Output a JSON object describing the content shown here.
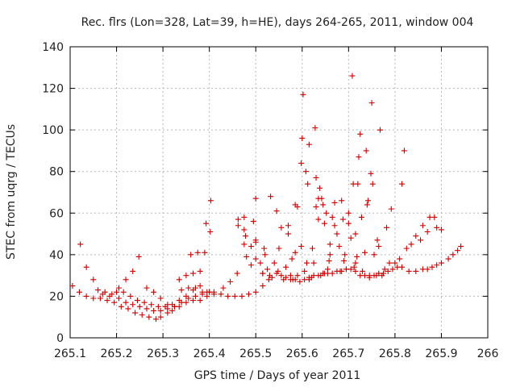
{
  "chart_data": {
    "type": "scatter",
    "title": "Rec. flrs (Lon=328, Lat=39, h=HE), days 264-265, 2011, window 004",
    "xlabel": "GPS time / Days of year 2011",
    "ylabel": "STEC from uqrg / TECUs",
    "xlim": [
      265.1,
      266.0
    ],
    "ylim": [
      0,
      140
    ],
    "xticks": [
      "265.1",
      "265.2",
      "265.3",
      "265.4",
      "265.5",
      "265.6",
      "265.7",
      "265.8",
      "265.9",
      "266"
    ],
    "yticks": [
      "0",
      "20",
      "40",
      "60",
      "80",
      "100",
      "120",
      "140"
    ],
    "xtick_values": [
      265.1,
      265.2,
      265.3,
      265.4,
      265.5,
      265.6,
      265.7,
      265.8,
      265.9,
      266.0
    ],
    "ytick_values": [
      0,
      20,
      40,
      60,
      80,
      100,
      120,
      140
    ],
    "grid": true,
    "marker": "plus",
    "marker_color": "#cc0000",
    "points": [
      [
        265.105,
        25
      ],
      [
        265.12,
        22
      ],
      [
        265.135,
        20
      ],
      [
        265.15,
        19
      ],
      [
        265.165,
        19
      ],
      [
        265.18,
        18
      ],
      [
        265.195,
        17
      ],
      [
        265.21,
        15
      ],
      [
        265.225,
        14
      ],
      [
        265.24,
        12
      ],
      [
        265.255,
        11
      ],
      [
        265.27,
        10
      ],
      [
        265.285,
        9
      ],
      [
        265.295,
        10
      ],
      [
        265.31,
        12
      ],
      [
        265.32,
        13
      ],
      [
        265.335,
        15
      ],
      [
        265.35,
        17
      ],
      [
        265.365,
        18
      ],
      [
        265.38,
        18
      ],
      [
        265.395,
        20
      ],
      [
        265.41,
        21
      ],
      [
        265.425,
        21
      ],
      [
        265.44,
        20
      ],
      [
        265.455,
        20
      ],
      [
        265.47,
        20
      ],
      [
        265.485,
        21
      ],
      [
        265.5,
        22
      ],
      [
        265.515,
        25
      ],
      [
        265.122,
        45
      ],
      [
        265.135,
        34
      ],
      [
        265.15,
        28
      ],
      [
        265.16,
        23
      ],
      [
        265.175,
        22
      ],
      [
        265.19,
        21
      ],
      [
        265.205,
        19
      ],
      [
        265.22,
        17
      ],
      [
        265.235,
        16
      ],
      [
        265.25,
        15
      ],
      [
        265.265,
        14
      ],
      [
        265.28,
        13
      ],
      [
        265.295,
        13
      ],
      [
        265.31,
        14
      ],
      [
        265.325,
        15
      ],
      [
        265.34,
        17
      ],
      [
        265.355,
        19
      ],
      [
        265.37,
        20
      ],
      [
        265.385,
        21
      ],
      [
        265.4,
        22
      ],
      [
        265.17,
        21
      ],
      [
        265.185,
        20
      ],
      [
        265.2,
        22
      ],
      [
        265.215,
        22
      ],
      [
        265.23,
        20
      ],
      [
        265.245,
        18
      ],
      [
        265.26,
        17
      ],
      [
        265.275,
        16
      ],
      [
        265.29,
        15
      ],
      [
        265.305,
        15
      ],
      [
        265.32,
        16
      ],
      [
        265.335,
        18
      ],
      [
        265.35,
        20
      ],
      [
        265.365,
        23
      ],
      [
        265.38,
        25
      ],
      [
        265.395,
        22
      ],
      [
        265.41,
        22
      ],
      [
        265.43,
        24
      ],
      [
        265.205,
        24
      ],
      [
        265.22,
        28
      ],
      [
        265.235,
        32
      ],
      [
        265.248,
        39
      ],
      [
        265.265,
        24
      ],
      [
        265.28,
        22
      ],
      [
        265.295,
        19
      ],
      [
        265.31,
        16
      ],
      [
        265.325,
        15
      ],
      [
        265.34,
        23
      ],
      [
        265.355,
        24
      ],
      [
        265.37,
        24
      ],
      [
        265.385,
        22
      ],
      [
        265.4,
        22
      ],
      [
        265.335,
        28
      ],
      [
        265.35,
        30
      ],
      [
        265.365,
        31
      ],
      [
        265.38,
        32
      ],
      [
        265.36,
        40
      ],
      [
        265.375,
        41
      ],
      [
        265.39,
        41
      ],
      [
        265.393,
        55
      ],
      [
        265.402,
        51
      ],
      [
        265.403,
        66
      ],
      [
        265.445,
        27
      ],
      [
        265.46,
        31
      ],
      [
        265.462,
        57
      ],
      [
        265.462,
        54
      ],
      [
        265.475,
        58
      ],
      [
        265.475,
        52
      ],
      [
        265.475,
        45
      ],
      [
        265.478,
        49
      ],
      [
        265.48,
        39
      ],
      [
        265.49,
        44
      ],
      [
        265.49,
        35
      ],
      [
        265.495,
        56
      ],
      [
        265.5,
        47
      ],
      [
        265.5,
        46
      ],
      [
        265.5,
        38
      ],
      [
        265.5,
        67
      ],
      [
        265.51,
        36
      ],
      [
        265.515,
        31
      ],
      [
        265.518,
        43
      ],
      [
        265.52,
        40
      ],
      [
        265.528,
        28
      ],
      [
        265.532,
        68
      ],
      [
        265.53,
        30
      ],
      [
        265.54,
        36
      ],
      [
        265.545,
        61
      ],
      [
        265.548,
        32
      ],
      [
        265.55,
        43
      ],
      [
        265.555,
        53
      ],
      [
        265.56,
        28
      ],
      [
        265.565,
        34
      ],
      [
        265.57,
        50
      ],
      [
        265.57,
        54
      ],
      [
        265.575,
        30
      ],
      [
        265.578,
        38
      ],
      [
        265.58,
        28
      ],
      [
        265.585,
        41
      ],
      [
        265.585,
        64
      ],
      [
        265.59,
        63
      ],
      [
        265.59,
        30
      ],
      [
        265.598,
        44
      ],
      [
        265.598,
        84
      ],
      [
        265.6,
        96
      ],
      [
        265.602,
        117
      ],
      [
        265.605,
        32
      ],
      [
        265.608,
        80
      ],
      [
        265.61,
        36
      ],
      [
        265.612,
        74
      ],
      [
        265.615,
        93
      ],
      [
        265.615,
        28
      ],
      [
        265.62,
        29
      ],
      [
        265.622,
        43
      ],
      [
        265.625,
        36
      ],
      [
        265.628,
        101
      ],
      [
        265.63,
        63
      ],
      [
        265.63,
        77
      ],
      [
        265.635,
        57
      ],
      [
        265.635,
        67
      ],
      [
        265.638,
        72
      ],
      [
        265.64,
        30
      ],
      [
        265.642,
        67
      ],
      [
        265.645,
        64
      ],
      [
        265.648,
        55
      ],
      [
        265.648,
        31
      ],
      [
        265.652,
        60
      ],
      [
        265.655,
        33
      ],
      [
        265.658,
        37
      ],
      [
        265.66,
        40
      ],
      [
        265.66,
        45
      ],
      [
        265.665,
        58
      ],
      [
        265.67,
        65
      ],
      [
        265.67,
        54
      ],
      [
        265.675,
        50
      ],
      [
        265.68,
        44
      ],
      [
        265.682,
        32
      ],
      [
        265.685,
        66
      ],
      [
        265.688,
        57
      ],
      [
        265.69,
        37
      ],
      [
        265.692,
        40
      ],
      [
        265.695,
        33
      ],
      [
        265.7,
        55
      ],
      [
        265.7,
        60
      ],
      [
        265.705,
        48
      ],
      [
        265.708,
        126
      ],
      [
        265.71,
        74
      ],
      [
        265.712,
        34
      ],
      [
        265.715,
        36
      ],
      [
        265.715,
        50
      ],
      [
        265.718,
        39
      ],
      [
        265.72,
        74
      ],
      [
        265.722,
        87
      ],
      [
        265.725,
        98
      ],
      [
        265.728,
        58
      ],
      [
        265.73,
        32
      ],
      [
        265.735,
        41
      ],
      [
        265.738,
        90
      ],
      [
        265.74,
        64
      ],
      [
        265.742,
        66
      ],
      [
        265.745,
        29
      ],
      [
        265.748,
        79
      ],
      [
        265.75,
        113
      ],
      [
        265.752,
        74
      ],
      [
        265.755,
        40
      ],
      [
        265.76,
        30
      ],
      [
        265.762,
        47
      ],
      [
        265.765,
        44
      ],
      [
        265.768,
        100
      ],
      [
        265.772,
        30
      ],
      [
        265.778,
        33
      ],
      [
        265.782,
        53
      ],
      [
        265.788,
        36
      ],
      [
        265.792,
        62
      ],
      [
        265.8,
        36
      ],
      [
        265.81,
        38
      ],
      [
        265.815,
        74
      ],
      [
        265.82,
        90
      ],
      [
        265.825,
        43
      ],
      [
        265.835,
        45
      ],
      [
        265.845,
        49
      ],
      [
        265.855,
        47
      ],
      [
        265.86,
        54
      ],
      [
        265.87,
        51
      ],
      [
        265.875,
        58
      ],
      [
        265.885,
        58
      ],
      [
        265.89,
        53
      ],
      [
        265.9,
        52
      ],
      [
        265.515,
        31
      ],
      [
        265.525,
        33
      ],
      [
        265.535,
        29
      ],
      [
        265.545,
        31
      ],
      [
        265.555,
        30
      ],
      [
        265.565,
        29
      ],
      [
        265.575,
        28
      ],
      [
        265.585,
        28
      ],
      [
        265.595,
        27
      ],
      [
        265.605,
        28
      ],
      [
        265.615,
        29
      ],
      [
        265.625,
        30
      ],
      [
        265.635,
        30
      ],
      [
        265.645,
        31
      ],
      [
        265.655,
        31
      ],
      [
        265.665,
        31
      ],
      [
        265.675,
        32
      ],
      [
        265.685,
        32
      ],
      [
        265.695,
        33
      ],
      [
        265.705,
        33
      ],
      [
        265.715,
        32
      ],
      [
        265.725,
        30
      ],
      [
        265.735,
        30
      ],
      [
        265.745,
        30
      ],
      [
        265.755,
        30
      ],
      [
        265.765,
        31
      ],
      [
        265.775,
        31
      ],
      [
        265.785,
        32
      ],
      [
        265.795,
        33
      ],
      [
        265.805,
        34
      ],
      [
        265.815,
        34
      ],
      [
        265.83,
        32
      ],
      [
        265.845,
        32
      ],
      [
        265.86,
        33
      ],
      [
        265.87,
        33
      ],
      [
        265.88,
        34
      ],
      [
        265.89,
        35
      ],
      [
        265.9,
        36
      ],
      [
        265.915,
        38
      ],
      [
        265.925,
        40
      ],
      [
        265.935,
        42
      ],
      [
        265.942,
        44
      ]
    ]
  }
}
